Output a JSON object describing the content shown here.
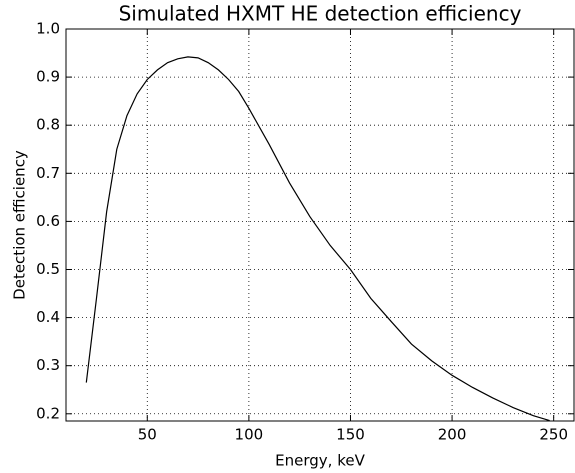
{
  "chart_data": {
    "type": "line",
    "title": "Simulated HXMT HE detection efficiency",
    "xlabel": "Energy, keV",
    "ylabel": "Detection efficiency",
    "x": [
      20,
      25,
      30,
      35,
      40,
      45,
      50,
      55,
      60,
      65,
      70,
      75,
      80,
      85,
      90,
      95,
      100,
      110,
      120,
      130,
      140,
      150,
      160,
      170,
      180,
      190,
      200,
      210,
      220,
      230,
      240,
      248
    ],
    "values": [
      0.265,
      0.44,
      0.62,
      0.75,
      0.82,
      0.865,
      0.895,
      0.915,
      0.93,
      0.938,
      0.942,
      0.94,
      0.93,
      0.915,
      0.895,
      0.87,
      0.835,
      0.76,
      0.68,
      0.61,
      0.55,
      0.5,
      0.44,
      0.392,
      0.345,
      0.31,
      0.28,
      0.255,
      0.233,
      0.213,
      0.196,
      0.186
    ],
    "color": "#000000",
    "xlim": [
      10,
      260
    ],
    "ylim": [
      0.185,
      1.0
    ],
    "xticks": [
      50,
      100,
      150,
      200,
      250
    ],
    "yticks": [
      0.2,
      0.3,
      0.4,
      0.5,
      0.6,
      0.7,
      0.8,
      0.9,
      {
        "value": 1.0,
        "label": "1.0"
      }
    ],
    "grid": true
  }
}
